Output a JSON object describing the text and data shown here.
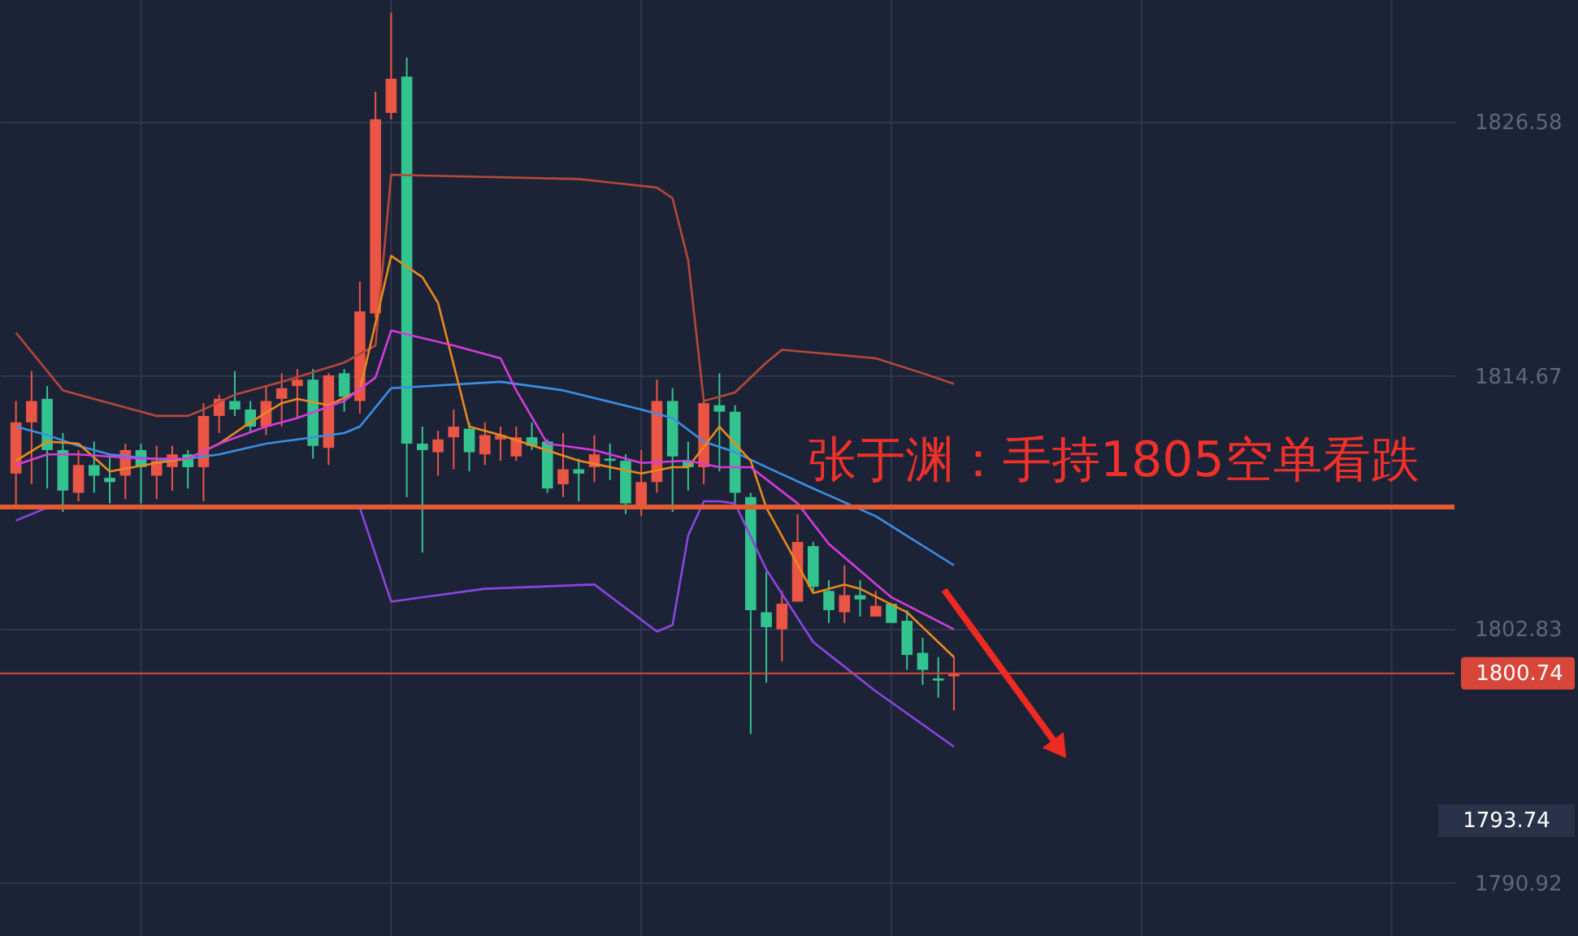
{
  "chart_data": {
    "type": "candlestick",
    "categories": [
      null,
      null,
      null,
      null,
      null,
      null,
      null,
      null,
      null,
      null,
      null,
      null,
      null,
      null,
      null,
      null,
      null,
      null,
      null,
      null,
      null,
      null,
      null,
      null,
      null,
      null,
      null,
      null,
      null,
      null,
      null,
      null,
      null,
      null,
      null,
      null,
      null,
      null,
      null,
      null,
      null,
      null,
      null,
      null,
      null,
      null,
      null,
      null,
      null,
      null,
      null,
      null,
      null,
      null,
      null,
      null,
      null,
      null,
      null,
      null,
      null,
      null,
      null,
      null,
      null,
      null,
      null,
      null,
      null,
      null,
      null,
      null,
      null,
      null,
      null,
      null,
      null,
      null,
      null,
      null,
      null,
      null,
      null,
      null,
      null,
      null,
      null,
      null,
      null,
      null,
      null,
      null
    ],
    "ohlc": [
      [
        1810.1,
        1813.5,
        1808.5,
        1812.5
      ],
      [
        1812.5,
        1814.9,
        1809.6,
        1813.5
      ],
      [
        1813.6,
        1814.2,
        1809.4,
        1811.2
      ],
      [
        1811.2,
        1812.0,
        1808.3,
        1809.3
      ],
      [
        1809.2,
        1811.2,
        1808.8,
        1810.5
      ],
      [
        1810.5,
        1811.6,
        1809.2,
        1810.0
      ],
      [
        1809.9,
        1811.0,
        1808.7,
        1809.7
      ],
      [
        1810.0,
        1811.5,
        1808.9,
        1811.2
      ],
      [
        1811.2,
        1811.5,
        1808.7,
        1810.4
      ],
      [
        1810.0,
        1811.4,
        1808.9,
        1810.7
      ],
      [
        1810.4,
        1811.4,
        1809.3,
        1811.0
      ],
      [
        1811.0,
        1811.2,
        1809.4,
        1810.4
      ],
      [
        1810.4,
        1813.4,
        1808.8,
        1812.8
      ],
      [
        1812.8,
        1813.8,
        1812.0,
        1813.6
      ],
      [
        1813.5,
        1814.9,
        1812.8,
        1813.1
      ],
      [
        1813.1,
        1813.5,
        1812.0,
        1812.3
      ],
      [
        1812.3,
        1814.2,
        1811.9,
        1813.5
      ],
      [
        1813.6,
        1814.8,
        1812.3,
        1814.1
      ],
      [
        1814.2,
        1815.0,
        1812.7,
        1814.5
      ],
      [
        1814.5,
        1815.0,
        1810.8,
        1811.4
      ],
      [
        1811.3,
        1814.8,
        1810.5,
        1814.7
      ],
      [
        1814.8,
        1815.0,
        1813.0,
        1813.7
      ],
      [
        1813.5,
        1819.1,
        1812.9,
        1817.7
      ],
      [
        1817.6,
        1828.0,
        1817.4,
        1826.7
      ],
      [
        1827.0,
        1831.7,
        1826.7,
        1828.6
      ],
      [
        1828.7,
        1829.6,
        1809.0,
        1811.5
      ],
      [
        1811.5,
        1812.3,
        1806.4,
        1811.2
      ],
      [
        1811.1,
        1812.1,
        1810.0,
        1811.7
      ],
      [
        1811.8,
        1813.1,
        1810.3,
        1812.3
      ],
      [
        1812.2,
        1812.5,
        1810.2,
        1811.1
      ],
      [
        1811.0,
        1812.5,
        1810.5,
        1811.9
      ],
      [
        1811.7,
        1812.3,
        1810.7,
        1811.9
      ],
      [
        1810.9,
        1812.3,
        1810.7,
        1811.8
      ],
      [
        1811.8,
        1812.5,
        1811.2,
        1811.4
      ],
      [
        1811.6,
        1811.7,
        1809.2,
        1809.4
      ],
      [
        1809.6,
        1812.0,
        1809.0,
        1810.3
      ],
      [
        1810.3,
        1810.8,
        1808.8,
        1810.1
      ],
      [
        1810.4,
        1811.9,
        1809.7,
        1811.0
      ],
      [
        1810.8,
        1811.5,
        1809.8,
        1810.7
      ],
      [
        1810.7,
        1811.0,
        1808.2,
        1808.7
      ],
      [
        1808.5,
        1811.2,
        1808.1,
        1809.7
      ],
      [
        1809.7,
        1814.5,
        1809.2,
        1813.5
      ],
      [
        1813.5,
        1814.1,
        1808.3,
        1810.9
      ],
      [
        1810.7,
        1811.6,
        1809.3,
        1810.4
      ],
      [
        1810.4,
        1813.5,
        1809.6,
        1813.4
      ],
      [
        1813.3,
        1814.8,
        1810.2,
        1813.0
      ],
      [
        1813.0,
        1813.3,
        1808.7,
        1809.2
      ],
      [
        1809.0,
        1809.2,
        1797.9,
        1803.7
      ],
      [
        1803.6,
        1805.5,
        1800.3,
        1802.9
      ],
      [
        1802.8,
        1804.6,
        1801.3,
        1804.0
      ],
      [
        1804.1,
        1808.2,
        1804.1,
        1806.9
      ],
      [
        1806.7,
        1806.9,
        1804.6,
        1804.8
      ],
      [
        1804.6,
        1805.1,
        1803.1,
        1803.7
      ],
      [
        1803.6,
        1805.8,
        1803.1,
        1804.4
      ],
      [
        1804.4,
        1805.1,
        1803.4,
        1804.2
      ],
      [
        1803.4,
        1804.6,
        1803.4,
        1803.9
      ],
      [
        1804.0,
        1804.0,
        1803.1,
        1803.1
      ],
      [
        1803.2,
        1803.7,
        1800.9,
        1801.6
      ],
      [
        1801.7,
        1802.4,
        1800.2,
        1800.9
      ],
      [
        1800.5,
        1801.5,
        1799.6,
        1800.4
      ],
      [
        1800.6,
        1801.5,
        1799.0,
        1800.74
      ],
      null,
      null,
      null,
      null,
      null,
      null,
      null,
      null,
      null,
      null,
      null,
      null,
      null,
      null,
      null,
      null,
      null,
      null,
      null,
      null,
      null,
      null,
      null,
      null,
      null,
      null,
      null,
      null,
      null,
      null,
      null
    ],
    "colors": [
      "#eb5545",
      "#eb5545",
      "#33c38f",
      "#33c38f",
      "#eb5545",
      "#33c38f",
      "#33c38f",
      "#eb5545",
      "#33c38f",
      "#eb5545",
      "#eb5545",
      "#33c38f",
      "#eb5545",
      "#eb5545",
      "#33c38f",
      "#33c38f",
      "#eb5545",
      "#eb5545",
      "#eb5545",
      "#33c38f",
      "#eb5545",
      "#33c38f",
      "#eb5545",
      "#eb5545",
      "#eb5545",
      "#33c38f",
      "#33c38f",
      "#eb5545",
      "#eb5545",
      "#33c38f",
      "#eb5545",
      "#eb5545",
      "#eb5545",
      "#33c38f",
      "#33c38f",
      "#eb5545",
      "#33c38f",
      "#eb5545",
      "#33c38f",
      "#33c38f",
      "#eb5545",
      "#eb5545",
      "#33c38f",
      "#33c38f",
      "#eb5545",
      "#33c38f",
      "#33c38f",
      "#33c38f",
      "#33c38f",
      "#eb5545",
      "#eb5545",
      "#33c38f",
      "#33c38f",
      "#eb5545",
      "#33c38f",
      "#eb5545",
      "#33c38f",
      "#33c38f",
      "#33c38f",
      "#33c38f",
      "#eb5545",
      null,
      null,
      null,
      null,
      null,
      null,
      null,
      null,
      null,
      null,
      null,
      null,
      null,
      null,
      null,
      null,
      null,
      null,
      null,
      null,
      null,
      null,
      null,
      null,
      null,
      null,
      null,
      null,
      null,
      null,
      null
    ],
    "series": [
      {
        "type": "line",
        "color": "#b5483a",
        "values": [
          1816.7,
          null,
          null,
          1814.0,
          null,
          null,
          1813.4,
          null,
          null,
          1812.8,
          null,
          1812.8,
          1813.1,
          null,
          1813.8,
          null,
          null,
          1814.4,
          null,
          null,
          null,
          1815.3,
          null,
          1816.1,
          1824.1,
          null,
          null,
          null,
          null,
          null,
          null,
          null,
          null,
          null,
          null,
          null,
          1823.9,
          null,
          null,
          null,
          null,
          1823.5,
          1823.0,
          1820.1,
          1813.5,
          null,
          1813.9,
          null,
          1815.3,
          1815.9,
          null,
          null,
          null,
          null,
          null,
          1815.5,
          null,
          null,
          1814.8,
          null,
          1814.3,
          null,
          null,
          null,
          null,
          null,
          null,
          null,
          null,
          null,
          null,
          null,
          null,
          null,
          null,
          null,
          null,
          null,
          null,
          null,
          null,
          null,
          null,
          null,
          null,
          null,
          null,
          null,
          null,
          null,
          null,
          null
        ]
      },
      {
        "type": "line",
        "color": "#3b8fe6",
        "values": [
          1812.3,
          null,
          1811.9,
          null,
          1811.4,
          null,
          1811.0,
          null,
          null,
          null,
          1810.7,
          null,
          null,
          1811.0,
          null,
          null,
          1811.5,
          null,
          null,
          1811.8,
          null,
          1812.0,
          1812.3,
          null,
          1814.1,
          null,
          null,
          null,
          null,
          null,
          null,
          1814.4,
          null,
          null,
          null,
          1814.0,
          null,
          null,
          null,
          null,
          1813.1,
          null,
          1812.7,
          null,
          1811.6,
          null,
          1811.1,
          null,
          1810.4,
          null,
          null,
          1809.4,
          null,
          null,
          null,
          1808.1,
          null,
          null,
          null,
          null,
          1805.8,
          null,
          null,
          null,
          null,
          null,
          null,
          null,
          null,
          null,
          null,
          null,
          null,
          null,
          null,
          null,
          null,
          null,
          null,
          null,
          null,
          null,
          null,
          null,
          null,
          null,
          null,
          null,
          null,
          null,
          null,
          null
        ]
      },
      {
        "type": "line",
        "color": "#8b45e0",
        "values": [
          1807.9,
          null,
          1808.5,
          null,
          null,
          null,
          null,
          null,
          null,
          null,
          null,
          null,
          null,
          null,
          null,
          null,
          null,
          null,
          null,
          null,
          null,
          null,
          1808.5,
          null,
          1804.1,
          null,
          null,
          null,
          null,
          null,
          1804.7,
          null,
          null,
          null,
          null,
          null,
          null,
          1804.9,
          null,
          null,
          null,
          1802.7,
          1803.0,
          1807.2,
          1808.8,
          1808.8,
          1808.7,
          null,
          1805.6,
          null,
          null,
          1802.2,
          null,
          null,
          null,
          1799.9,
          null,
          null,
          null,
          null,
          1797.3,
          null,
          null,
          null,
          null,
          null,
          null,
          null,
          null,
          null,
          null,
          null,
          null,
          null,
          null,
          null,
          null,
          null,
          null,
          null,
          null,
          null,
          null,
          null,
          null,
          null,
          null,
          null,
          null,
          null,
          null,
          null
        ]
      },
      {
        "type": "line",
        "color": "#e88a1f",
        "values": [
          1810.7,
          null,
          1811.6,
          null,
          1811.5,
          null,
          1810.2,
          null,
          null,
          1810.6,
          null,
          1810.8,
          null,
          1811.5,
          null,
          1812.5,
          null,
          1813.4,
          1813.6,
          null,
          1813.3,
          null,
          1814.0,
          null,
          1820.3,
          null,
          1819.3,
          1818.1,
          null,
          1812.3,
          null,
          1811.9,
          null,
          null,
          null,
          null,
          1810.7,
          null,
          null,
          null,
          1810.1,
          null,
          1810.4,
          1810.4,
          null,
          1812.3,
          null,
          1810.7,
          1808.5,
          null,
          null,
          1804.5,
          null,
          1804.9,
          1804.7,
          null,
          null,
          1803.6,
          null,
          null,
          1801.5,
          null,
          null,
          null,
          null,
          null,
          null,
          null,
          null,
          null,
          null,
          null,
          null,
          null,
          null,
          null,
          null,
          null,
          null,
          null,
          null,
          null,
          null,
          null,
          null,
          null,
          null,
          null,
          null,
          null,
          null,
          null
        ]
      },
      {
        "type": "line",
        "color": "#d53bdc",
        "values": [
          1810.5,
          null,
          1811.0,
          null,
          1811.0,
          null,
          null,
          null,
          1810.8,
          null,
          null,
          1810.8,
          null,
          1811.5,
          null,
          null,
          1812.3,
          null,
          1812.7,
          null,
          null,
          1813.5,
          null,
          1814.6,
          1816.8,
          null,
          null,
          null,
          1816.1,
          null,
          null,
          1815.5,
          1814.0,
          null,
          1811.5,
          null,
          null,
          1811.2,
          null,
          null,
          1810.6,
          null,
          null,
          1810.7,
          null,
          1810.4,
          null,
          1810.4,
          null,
          null,
          1808.7,
          null,
          1806.8,
          null,
          null,
          null,
          1804.3,
          null,
          null,
          null,
          1802.8,
          null,
          null,
          null,
          null,
          null,
          null,
          null,
          null,
          null,
          null,
          null,
          null,
          null,
          null,
          null,
          null,
          null,
          null,
          null,
          null,
          null,
          null,
          null,
          null,
          null,
          null,
          null,
          null,
          null,
          null,
          null
        ]
      }
    ],
    "ylim": [
      1788.43,
      1832.29
    ],
    "yticks": [
      1790.92,
      1802.83,
      1814.67,
      1826.58
    ],
    "tick_labels": "y",
    "grid": true,
    "ref_lines": [
      {
        "axis": "y",
        "value": 1808.53,
        "color": "#e35a33"
      },
      {
        "axis": "y",
        "value": 1800.74,
        "label": "1800.74",
        "color": "#d8463a"
      }
    ],
    "annotations": [
      "张于渊：手持1805空单看跌",
      "1793.74"
    ]
  }
}
